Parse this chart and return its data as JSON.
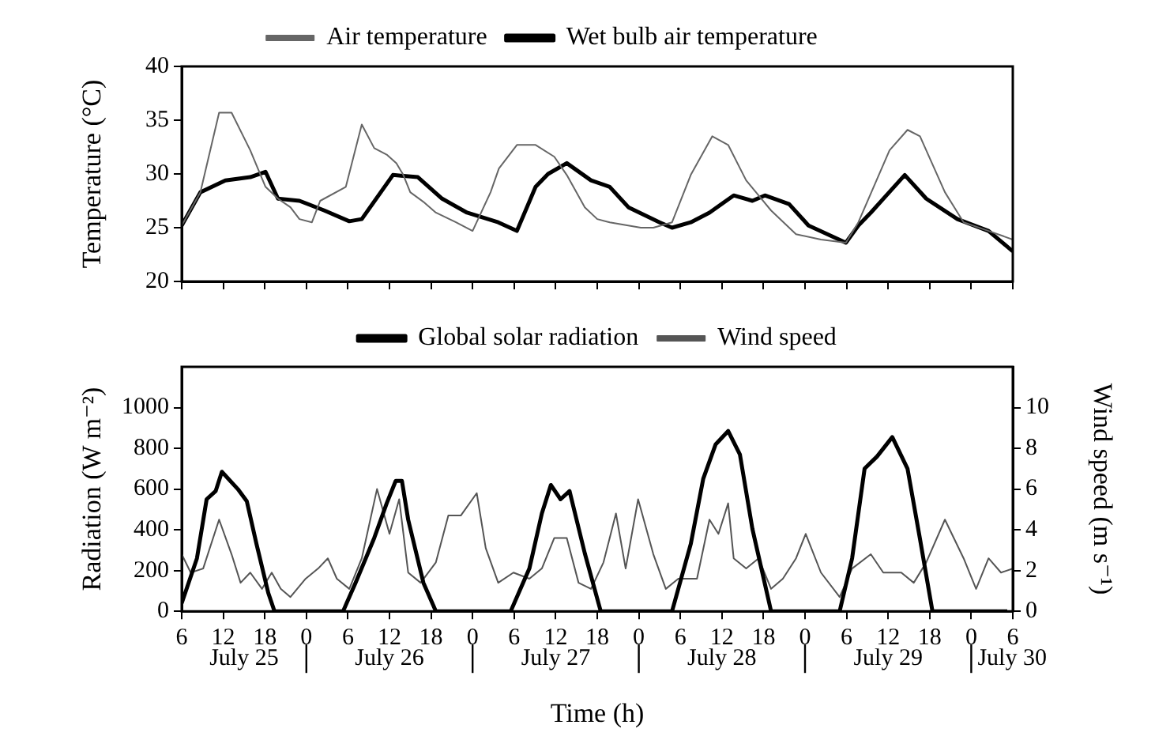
{
  "chart_data": [
    {
      "type": "line",
      "ylabel": "Temperature (°C)",
      "xlim": [
        "--07-25T06:00",
        "--07-30T06:00"
      ],
      "xticks": [
        {
          "value": "--07-25T06:00",
          "label": null
        },
        {
          "value": "--07-25T12:00",
          "label": null
        },
        {
          "value": "--07-25T18:00",
          "label": null
        },
        {
          "value": "--07-26T00:00",
          "label": null
        },
        {
          "value": "--07-26T06:00",
          "label": null
        },
        {
          "value": "--07-26T12:00",
          "label": null
        },
        {
          "value": "--07-26T18:00",
          "label": null
        },
        {
          "value": "--07-27T00:00",
          "label": null
        },
        {
          "value": "--07-27T06:00",
          "label": null
        },
        {
          "value": "--07-27T12:00",
          "label": null
        },
        {
          "value": "--07-27T18:00",
          "label": null
        },
        {
          "value": "--07-28T00:00",
          "label": null
        },
        {
          "value": "--07-28T06:00",
          "label": null
        },
        {
          "value": "--07-28T12:00",
          "label": null
        },
        {
          "value": "--07-28T18:00",
          "label": null
        },
        {
          "value": "--07-29T00:00",
          "label": null
        },
        {
          "value": "--07-29T06:00",
          "label": null
        },
        {
          "value": "--07-29T12:00",
          "label": null
        },
        {
          "value": "--07-29T18:00",
          "label": null
        },
        {
          "value": "--07-30T00:00",
          "label": null
        },
        {
          "value": "--07-30T06:00",
          "label": null
        }
      ],
      "ylim": [
        20,
        40
      ],
      "yticks": [
        20,
        25,
        30,
        35,
        40
      ],
      "tick_labels": "y",
      "grid": false,
      "legend": "top",
      "series": [
        {
          "name": "Air temperature",
          "color": "#666666",
          "x": [
            "--07-25T06:00",
            "--07-25T08:42",
            "--07-25T11:24",
            "--07-25T13:12",
            "--07-25T15:54",
            "--07-25T18:06",
            "--07-25T19:54",
            "--07-25T21:42",
            "--07-25T23:00",
            "--07-26T00:48",
            "--07-26T02:00",
            "--07-26T05:42",
            "--07-26T08:00",
            "--07-26T09:48",
            "--07-26T11:36",
            "--07-26T13:00",
            "--07-26T14:00",
            "--07-26T15:00",
            "--07-26T16:54",
            "--07-26T18:42",
            "--07-26T21:36",
            "--07-27T00:00",
            "--07-27T02:36",
            "--07-27T03:48",
            "--07-27T06:24",
            "--07-27T09:06",
            "--07-27T11:48",
            "--07-27T13:36",
            "--07-27T16:12",
            "--07-27T18:00",
            "--07-27T19:48",
            "--07-28T00:18",
            "--07-28T02:06",
            "--07-28T04:48",
            "--07-28T07:30",
            "--07-28T10:36",
            "--07-28T12:54",
            "--07-28T15:30",
            "--07-28T19:06",
            "--07-28T22:42",
            "--07-29T02:18",
            "--07-29T05:54",
            "--07-29T07:42",
            "--07-29T12:12",
            "--07-29T14:48",
            "--07-29T16:36",
            "--07-29T20:12",
            "--07-29T22:54",
            "--07-30T02:30",
            "--07-30T06:00"
          ],
          "values": [
            25.2,
            28.3,
            35.7,
            35.7,
            32.2,
            28.8,
            27.7,
            26.9,
            25.8,
            25.5,
            27.5,
            28.8,
            34.6,
            32.4,
            31.8,
            31.0,
            29.9,
            28.3,
            27.4,
            26.4,
            25.5,
            24.7,
            28.3,
            30.5,
            32.7,
            32.7,
            31.6,
            29.9,
            26.9,
            25.8,
            25.5,
            25.0,
            25.0,
            25.5,
            29.9,
            33.5,
            32.7,
            29.4,
            26.6,
            24.4,
            23.9,
            23.6,
            25.5,
            32.2,
            34.1,
            33.5,
            28.3,
            25.5,
            24.7,
            23.9
          ]
        },
        {
          "name": "Wet bulb air temperature",
          "color": "#000000",
          "x": [
            "--07-25T06:00",
            "--07-25T08:42",
            "--07-25T12:18",
            "--07-25T15:54",
            "--07-25T18:06",
            "--07-25T19:54",
            "--07-25T23:00",
            "--07-26T02:36",
            "--07-26T06:12",
            "--07-26T08:00",
            "--07-26T12:30",
            "--07-26T16:06",
            "--07-26T19:36",
            "--07-26T23:12",
            "--07-27T03:42",
            "--07-27T06:24",
            "--07-27T09:06",
            "--07-27T10:54",
            "--07-27T13:36",
            "--07-27T17:06",
            "--07-27T19:48",
            "--07-27T22:30",
            "--07-28T03:00",
            "--07-28T04:48",
            "--07-28T07:30",
            "--07-28T10:12",
            "--07-28T13:42",
            "--07-28T16:24",
            "--07-28T18:12",
            "--07-28T21:42",
            "--07-29T00:30",
            "--07-29T05:54",
            "--07-29T07:42",
            "--07-29T09:30",
            "--07-29T14:24",
            "--07-29T17:30",
            "--07-29T22:00",
            "--07-30T02:30",
            "--07-30T06:00"
          ],
          "values": [
            25.2,
            28.3,
            29.4,
            29.7,
            30.2,
            27.7,
            27.5,
            26.6,
            25.6,
            25.8,
            29.9,
            29.7,
            27.7,
            26.4,
            25.5,
            24.7,
            28.8,
            30.0,
            31.0,
            29.4,
            28.8,
            26.9,
            25.5,
            25.0,
            25.5,
            26.4,
            28.0,
            27.5,
            28.0,
            27.2,
            25.2,
            23.6,
            25.2,
            26.4,
            29.9,
            27.7,
            25.8,
            24.7,
            22.8
          ]
        }
      ]
    },
    {
      "type": "line",
      "xlabel": "Time (h)",
      "ylabel": "Radiation (W m⁻²)",
      "y2label": "Wind speed (m s⁻¹)",
      "xlim": [
        "--07-25T06:00",
        "--07-30T06:00"
      ],
      "xticks": [
        {
          "value": "--07-25T06:00",
          "label": "6"
        },
        {
          "value": "--07-25T12:00",
          "label": "12"
        },
        {
          "value": "--07-25T18:00",
          "label": "18"
        },
        {
          "value": "--07-26T00:00",
          "label": "0"
        },
        {
          "value": "--07-26T06:00",
          "label": "6"
        },
        {
          "value": "--07-26T12:00",
          "label": "12"
        },
        {
          "value": "--07-26T18:00",
          "label": "18"
        },
        {
          "value": "--07-27T00:00",
          "label": "0"
        },
        {
          "value": "--07-27T06:00",
          "label": "6"
        },
        {
          "value": "--07-27T12:00",
          "label": "12"
        },
        {
          "value": "--07-27T18:00",
          "label": "18"
        },
        {
          "value": "--07-28T00:00",
          "label": "0"
        },
        {
          "value": "--07-28T06:00",
          "label": "6"
        },
        {
          "value": "--07-28T12:00",
          "label": "12"
        },
        {
          "value": "--07-28T18:00",
          "label": "18"
        },
        {
          "value": "--07-29T00:00",
          "label": "0"
        },
        {
          "value": "--07-29T06:00",
          "label": "6"
        },
        {
          "value": "--07-29T12:00",
          "label": "12"
        },
        {
          "value": "--07-29T18:00",
          "label": "18"
        },
        {
          "value": "--07-30T00:00",
          "label": "0"
        },
        {
          "value": "--07-30T06:00",
          "label": "6"
        }
      ],
      "ylim": [
        0,
        1200
      ],
      "yticks": [
        0,
        200,
        400,
        600,
        800,
        1000
      ],
      "y2lim": [
        0,
        12
      ],
      "y2ticks": [
        0,
        2,
        4,
        6,
        8,
        10
      ],
      "grid": false,
      "legend": "top",
      "annotations": [
        "July 25",
        "July 26",
        "July 27",
        "July 28",
        "July 29",
        "July 30"
      ],
      "series": [
        {
          "name": "Global solar radiation",
          "color": "#000000",
          "x": [
            "--07-25T06:00",
            "--07-25T08:12",
            "--07-25T09:36",
            "--07-25T10:54",
            "--07-25T11:48",
            "--07-25T14:06",
            "--07-25T15:24",
            "--07-25T16:48",
            "--07-25T18:30",
            "--07-25T19:24",
            "--07-26T05:18",
            "--07-26T07:06",
            "--07-26T09:48",
            "--07-26T11:36",
            "--07-26T12:54",
            "--07-26T13:48",
            "--07-26T14:42",
            "--07-26T16:54",
            "--07-26T18:42",
            "--07-27T05:30",
            "--07-27T08:12",
            "--07-27T10:00",
            "--07-27T11:18",
            "--07-27T12:42",
            "--07-27T14:00",
            "--07-27T16:12",
            "--07-27T18:30",
            "--07-28T04:48",
            "--07-28T07:30",
            "--07-28T09:18",
            "--07-28T11:06",
            "--07-28T12:54",
            "--07-28T14:36",
            "--07-28T16:24",
            "--07-28T19:06",
            "--07-29T05:00",
            "--07-29T06:48",
            "--07-29T08:36",
            "--07-29T10:24",
            "--07-29T12:36",
            "--07-29T14:48",
            "--07-29T16:36",
            "--07-29T18:24",
            "--07-30T05:12"
          ],
          "values": [
            40,
            260,
            550,
            590,
            685,
            600,
            540,
            330,
            90,
            0,
            0,
            140,
            360,
            530,
            640,
            640,
            450,
            140,
            0,
            0,
            210,
            480,
            620,
            550,
            590,
            285,
            0,
            0,
            330,
            650,
            820,
            885,
            770,
            405,
            0,
            0,
            260,
            700,
            760,
            855,
            700,
            355,
            0,
            0
          ]
        },
        {
          "name": "Wind speed",
          "color": "#555555",
          "axis": "y2",
          "x": [
            "--07-25T06:00",
            "--07-25T07:18",
            "--07-25T09:06",
            "--07-25T11:24",
            "--07-25T13:12",
            "--07-25T14:30",
            "--07-25T15:54",
            "--07-25T17:36",
            "--07-25T19:00",
            "--07-25T20:18",
            "--07-25T21:42",
            "--07-25T23:54",
            "--07-26T01:42",
            "--07-26T03:06",
            "--07-26T04:24",
            "--07-26T06:12",
            "--07-26T08:00",
            "--07-26T10:12",
            "--07-26T12:00",
            "--07-26T13:24",
            "--07-26T14:42",
            "--07-26T16:30",
            "--07-26T18:42",
            "--07-26T20:30",
            "--07-26T22:18",
            "--07-27T00:36",
            "--07-27T01:54",
            "--07-27T03:42",
            "--07-27T05:54",
            "--07-27T08:12",
            "--07-27T10:00",
            "--07-27T11:48",
            "--07-27T13:36",
            "--07-27T15:18",
            "--07-27T17:06",
            "--07-27T18:54",
            "--07-27T20:42",
            "--07-27T22:06",
            "--07-27T23:54",
            "--07-28T02:06",
            "--07-28T03:54",
            "--07-28T05:42",
            "--07-28T08:24",
            "--07-28T10:12",
            "--07-28T11:30",
            "--07-28T12:54",
            "--07-28T13:42",
            "--07-28T15:30",
            "--07-28T17:18",
            "--07-28T19:06",
            "--07-28T20:48",
            "--07-28T22:42",
            "--07-29T00:06",
            "--07-29T02:18",
            "--07-29T05:00",
            "--07-29T06:48",
            "--07-29T09:30",
            "--07-29T11:18",
            "--07-29T13:54",
            "--07-29T15:42",
            "--07-29T17:30",
            "--07-29T20:12",
            "--07-29T22:54",
            "--07-30T00:42",
            "--07-30T02:30",
            "--07-30T04:18",
            "--07-30T06:00"
          ],
          "values": [
            2.8,
            1.9,
            2.1,
            4.5,
            2.8,
            1.4,
            1.9,
            1.1,
            1.9,
            1.1,
            0.7,
            1.6,
            2.1,
            2.6,
            1.6,
            1.1,
            2.6,
            6.0,
            3.8,
            5.5,
            1.9,
            1.4,
            2.4,
            4.7,
            4.7,
            5.8,
            3.1,
            1.4,
            1.9,
            1.6,
            2.1,
            3.6,
            3.6,
            1.4,
            1.1,
            2.4,
            4.8,
            2.1,
            5.5,
            2.8,
            1.1,
            1.6,
            1.6,
            4.5,
            3.8,
            5.3,
            2.6,
            2.1,
            2.6,
            1.1,
            1.6,
            2.6,
            3.8,
            1.9,
            0.7,
            2.1,
            2.8,
            1.9,
            1.9,
            1.4,
            2.4,
            4.5,
            2.6,
            1.1,
            2.6,
            1.9,
            2.1
          ]
        }
      ]
    }
  ]
}
